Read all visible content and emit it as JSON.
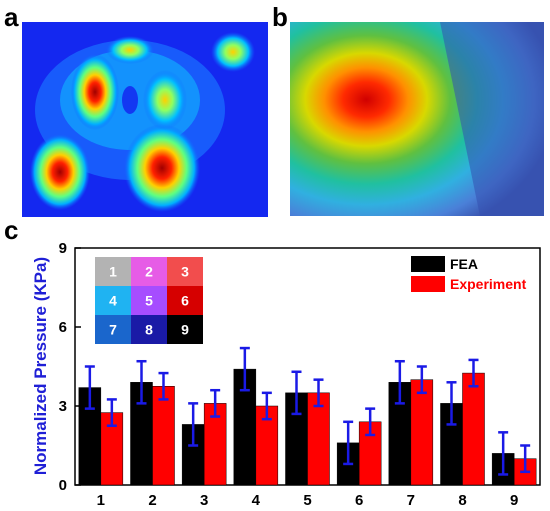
{
  "panels": {
    "a": "a",
    "b": "b",
    "c": "c"
  },
  "chart_data": {
    "type": "bar",
    "title": "",
    "xlabel": "",
    "ylabel": "Normalized Pressure (KPa)",
    "ylim": [
      0,
      9
    ],
    "yticks": [
      0,
      3,
      6,
      9
    ],
    "categories": [
      "1",
      "2",
      "3",
      "4",
      "5",
      "6",
      "7",
      "8",
      "9"
    ],
    "series": [
      {
        "name": "FEA",
        "color": "#000000",
        "values": [
          3.7,
          3.9,
          2.3,
          4.4,
          3.5,
          1.6,
          3.9,
          3.1,
          1.2
        ],
        "errors": [
          0.8,
          0.8,
          0.8,
          0.8,
          0.8,
          0.8,
          0.8,
          0.8,
          0.8
        ]
      },
      {
        "name": "Experiment",
        "color": "#ff0000",
        "values": [
          2.75,
          3.75,
          3.1,
          3.0,
          3.5,
          2.4,
          4.0,
          4.25,
          1.0
        ],
        "errors": [
          0.5,
          0.5,
          0.5,
          0.5,
          0.5,
          0.5,
          0.5,
          0.5,
          0.5
        ]
      }
    ],
    "error_bar_color": "#1a1ae6",
    "legend_position": "top-right",
    "key_grid": {
      "labels": [
        "1",
        "2",
        "3",
        "4",
        "5",
        "6",
        "7",
        "8",
        "9"
      ],
      "colors": [
        "#b3b3b3",
        "#e65ce6",
        "#f24d4d",
        "#1fb3f2",
        "#a64dff",
        "#d60000",
        "#1a66cc",
        "#1a1aa6",
        "#000000"
      ]
    }
  }
}
